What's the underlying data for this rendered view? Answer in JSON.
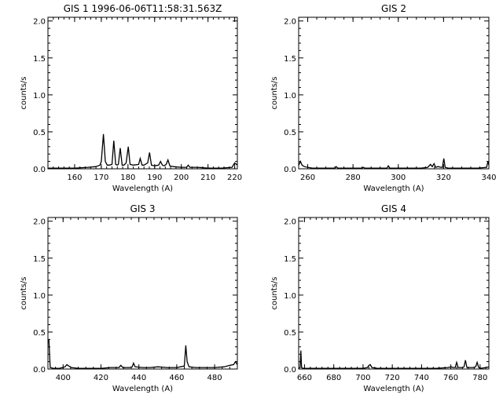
{
  "chart_data": [
    {
      "type": "line",
      "title": "GIS 1 1996-06-06T11:58:31.563Z",
      "xlabel": "Wavelength (A)",
      "ylabel": "counts/s",
      "xlim": [
        150,
        221
      ],
      "ylim": [
        0,
        2.05
      ],
      "xticks": [
        160,
        170,
        180,
        190,
        200,
        210,
        220
      ],
      "yticks": [
        0.0,
        0.5,
        1.0,
        1.5,
        2.0
      ],
      "tick_labels_x": [
        "160",
        "170",
        "180",
        "190",
        "200",
        "210",
        "220"
      ],
      "tick_labels_y": [
        "0.0",
        "0.5",
        "1.0",
        "1.5",
        "2.0"
      ],
      "grid": false,
      "series": [
        {
          "x": [
            150,
            160,
            165,
            168,
            169.5,
            170,
            170.8,
            171.5,
            172.2,
            173,
            174,
            174.7,
            175.4,
            176,
            176.4,
            177.1,
            177.8,
            178.5,
            179.3,
            180.1,
            180.8,
            182,
            184,
            184.6,
            185.3,
            186,
            187.4,
            188.1,
            188.8,
            190,
            191.5,
            192.2,
            192.9,
            193.5,
            194.3,
            195,
            195.7,
            197,
            200,
            202,
            202.6,
            203.2,
            206,
            210,
            215,
            219,
            220,
            221
          ],
          "y": [
            0.01,
            0.01,
            0.02,
            0.03,
            0.05,
            0.1,
            0.47,
            0.1,
            0.05,
            0.05,
            0.06,
            0.38,
            0.06,
            0.05,
            0.06,
            0.28,
            0.05,
            0.05,
            0.08,
            0.3,
            0.06,
            0.05,
            0.06,
            0.14,
            0.05,
            0.05,
            0.08,
            0.22,
            0.05,
            0.04,
            0.05,
            0.1,
            0.05,
            0.04,
            0.06,
            0.12,
            0.04,
            0.03,
            0.02,
            0.02,
            0.05,
            0.02,
            0.02,
            0.01,
            0.01,
            0.02,
            0.08,
            0.05
          ]
        }
      ]
    },
    {
      "type": "line",
      "title": "GIS 2",
      "xlabel": "Wavelength (A)",
      "ylabel": "counts/s",
      "xlim": [
        256,
        340
      ],
      "ylim": [
        0,
        2.05
      ],
      "xticks": [
        260,
        280,
        300,
        320,
        340
      ],
      "yticks": [
        0.0,
        0.5,
        1.0,
        1.5,
        2.0
      ],
      "tick_labels_x": [
        "260",
        "280",
        "300",
        "320",
        "340"
      ],
      "tick_labels_y": [
        "0.0",
        "0.5",
        "1.0",
        "1.5",
        "2.0"
      ],
      "grid": false,
      "series": [
        {
          "x": [
            256,
            256.8,
            257.5,
            258.5,
            260,
            262,
            265,
            270,
            272,
            272.6,
            273.2,
            276,
            280,
            284,
            284.6,
            285.2,
            290,
            295,
            295.6,
            296.2,
            300,
            305,
            310,
            313,
            314.2,
            315,
            315.8,
            316.5,
            317.5,
            319,
            319.5,
            320.1,
            320.7,
            322,
            325,
            330,
            335,
            339,
            339.6,
            340
          ],
          "y": [
            0.05,
            0.1,
            0.05,
            0.03,
            0.02,
            0.01,
            0.01,
            0.01,
            0.01,
            0.03,
            0.01,
            0.01,
            0.01,
            0.01,
            0.02,
            0.01,
            0.01,
            0.01,
            0.04,
            0.01,
            0.01,
            0.01,
            0.01,
            0.02,
            0.06,
            0.03,
            0.07,
            0.02,
            0.03,
            0.02,
            0.02,
            0.14,
            0.02,
            0.01,
            0.01,
            0.01,
            0.01,
            0.02,
            0.1,
            0.05
          ]
        }
      ]
    },
    {
      "type": "line",
      "title": "GIS 3",
      "xlabel": "Wavelength (A)",
      "ylabel": "counts/s",
      "xlim": [
        392,
        492
      ],
      "ylim": [
        0,
        2.05
      ],
      "xticks": [
        400,
        420,
        440,
        460,
        480
      ],
      "yticks": [
        0.0,
        0.5,
        1.0,
        1.5,
        2.0
      ],
      "tick_labels_x": [
        "400",
        "420",
        "440",
        "460",
        "480"
      ],
      "tick_labels_y": [
        "0.0",
        "0.5",
        "1.0",
        "1.5",
        "2.0"
      ],
      "grid": false,
      "series": [
        {
          "x": [
            392,
            392.5,
            393.2,
            395,
            398,
            401,
            402,
            403,
            404.5,
            408,
            412,
            416,
            420,
            425,
            429.5,
            430.5,
            431.5,
            435,
            436.5,
            437.2,
            438,
            442,
            446,
            450,
            455,
            460,
            464,
            464.8,
            465.5,
            466.5,
            470,
            475,
            480,
            485,
            488,
            490,
            491,
            492
          ],
          "y": [
            0.38,
            0.39,
            0.02,
            0.01,
            0.01,
            0.03,
            0.06,
            0.04,
            0.02,
            0.01,
            0.01,
            0.01,
            0.01,
            0.02,
            0.02,
            0.05,
            0.02,
            0.02,
            0.03,
            0.08,
            0.03,
            0.02,
            0.02,
            0.03,
            0.02,
            0.02,
            0.04,
            0.32,
            0.1,
            0.03,
            0.02,
            0.02,
            0.02,
            0.03,
            0.05,
            0.06,
            0.1,
            0.06
          ]
        }
      ]
    },
    {
      "type": "line",
      "title": "GIS 4",
      "xlabel": "Wavelength (A)",
      "ylabel": "counts/s",
      "xlim": [
        656,
        786
      ],
      "ylim": [
        0,
        2.05
      ],
      "xticks": [
        660,
        680,
        700,
        720,
        740,
        760,
        780
      ],
      "yticks": [
        0.0,
        0.5,
        1.0,
        1.5,
        2.0
      ],
      "tick_labels_x": [
        "660",
        "680",
        "700",
        "720",
        "740",
        "760",
        "780"
      ],
      "tick_labels_y": [
        "0.0",
        "0.5",
        "1.0",
        "1.5",
        "2.0"
      ],
      "grid": false,
      "series": [
        {
          "x": [
            656,
            657,
            657.5,
            658,
            659,
            662,
            670,
            680,
            690,
            700,
            703,
            704,
            705,
            706,
            710,
            720,
            730,
            740,
            750,
            758,
            760,
            762,
            763,
            764,
            765,
            768,
            769,
            770,
            771,
            775,
            777,
            778,
            779,
            780,
            784,
            786
          ],
          "y": [
            0.01,
            0.02,
            0.25,
            0.02,
            0.01,
            0.01,
            0.01,
            0.01,
            0.01,
            0.01,
            0.02,
            0.05,
            0.06,
            0.02,
            0.01,
            0.01,
            0.01,
            0.01,
            0.01,
            0.02,
            0.03,
            0.02,
            0.02,
            0.09,
            0.02,
            0.02,
            0.03,
            0.12,
            0.02,
            0.02,
            0.03,
            0.09,
            0.02,
            0.01,
            0.02,
            0.03
          ]
        }
      ]
    }
  ]
}
